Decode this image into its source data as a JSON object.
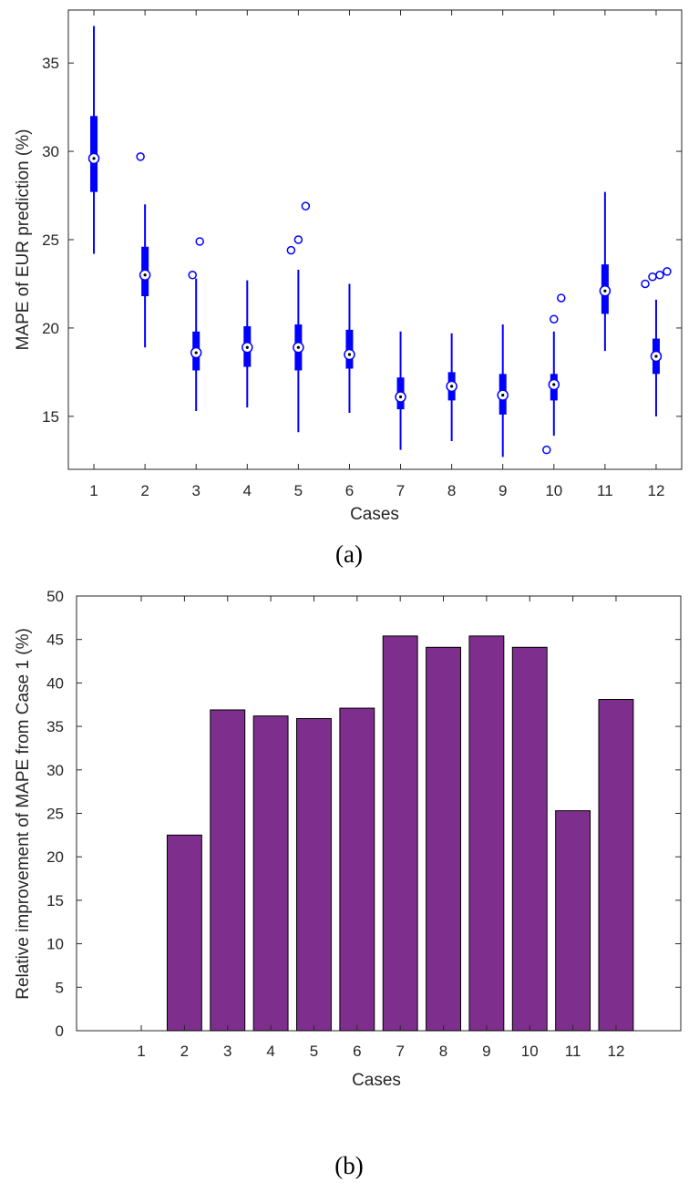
{
  "colors": {
    "box": "#0000ff",
    "bar": "#7e2f8e",
    "axis": "#262626"
  },
  "chart_data": [
    {
      "type": "box",
      "panel_label": "(a)",
      "xlabel": "Cases",
      "ylabel": "MAPE of EUR prediction (%)",
      "xlim": [
        0.5,
        12.5
      ],
      "ylim": [
        12,
        38
      ],
      "xticks": [
        1,
        2,
        3,
        4,
        5,
        6,
        7,
        8,
        9,
        10,
        11,
        12
      ],
      "yticks": [
        15,
        20,
        25,
        30,
        35
      ],
      "grid": false,
      "legend": "none",
      "boxes": [
        {
          "case": 1,
          "whisker_low": 24.2,
          "q1": 27.7,
          "median": 29.6,
          "q3": 32.0,
          "whisker_high": 37.1,
          "outliers": []
        },
        {
          "case": 2,
          "whisker_low": 18.9,
          "q1": 21.8,
          "median": 23.0,
          "q3": 24.6,
          "whisker_high": 27.0,
          "outliers": [
            29.7
          ]
        },
        {
          "case": 3,
          "whisker_low": 15.3,
          "q1": 17.6,
          "median": 18.6,
          "q3": 19.8,
          "whisker_high": 22.8,
          "outliers": [
            23.0,
            24.9
          ]
        },
        {
          "case": 4,
          "whisker_low": 15.5,
          "q1": 17.8,
          "median": 18.9,
          "q3": 20.1,
          "whisker_high": 22.7,
          "outliers": []
        },
        {
          "case": 5,
          "whisker_low": 14.1,
          "q1": 17.6,
          "median": 18.9,
          "q3": 20.2,
          "whisker_high": 23.3,
          "outliers": [
            24.4,
            25.0,
            26.9
          ]
        },
        {
          "case": 6,
          "whisker_low": 15.2,
          "q1": 17.7,
          "median": 18.5,
          "q3": 19.9,
          "whisker_high": 22.5,
          "outliers": []
        },
        {
          "case": 7,
          "whisker_low": 13.1,
          "q1": 15.4,
          "median": 16.1,
          "q3": 17.2,
          "whisker_high": 19.8,
          "outliers": []
        },
        {
          "case": 8,
          "whisker_low": 13.6,
          "q1": 15.9,
          "median": 16.7,
          "q3": 17.5,
          "whisker_high": 19.7,
          "outliers": []
        },
        {
          "case": 9,
          "whisker_low": 12.7,
          "q1": 15.1,
          "median": 16.2,
          "q3": 17.4,
          "whisker_high": 20.2,
          "outliers": []
        },
        {
          "case": 10,
          "whisker_low": 13.9,
          "q1": 15.9,
          "median": 16.8,
          "q3": 17.4,
          "whisker_high": 19.8,
          "outliers": [
            13.1,
            20.5,
            21.7
          ]
        },
        {
          "case": 11,
          "whisker_low": 18.7,
          "q1": 20.8,
          "median": 22.1,
          "q3": 23.6,
          "whisker_high": 27.7,
          "outliers": []
        },
        {
          "case": 12,
          "whisker_low": 15.0,
          "q1": 17.4,
          "median": 18.4,
          "q3": 19.4,
          "whisker_high": 21.6,
          "outliers": [
            22.5,
            22.9,
            23.0,
            23.2
          ]
        }
      ]
    },
    {
      "type": "bar",
      "panel_label": "(b)",
      "xlabel": "Cases",
      "ylabel": "Relative improvement of MAPE from Case 1 (%)",
      "categories": [
        "1",
        "2",
        "3",
        "4",
        "5",
        "6",
        "7",
        "8",
        "9",
        "10",
        "11",
        "12"
      ],
      "values": [
        0,
        22.5,
        36.9,
        36.2,
        35.9,
        37.1,
        45.4,
        44.1,
        45.4,
        44.1,
        25.3,
        38.1
      ],
      "xlim": [
        -0.5,
        13.5
      ],
      "ylim": [
        0,
        50
      ],
      "yticks": [
        0,
        5,
        10,
        15,
        20,
        25,
        30,
        35,
        40,
        45,
        50
      ],
      "grid": false,
      "legend": "none"
    }
  ]
}
